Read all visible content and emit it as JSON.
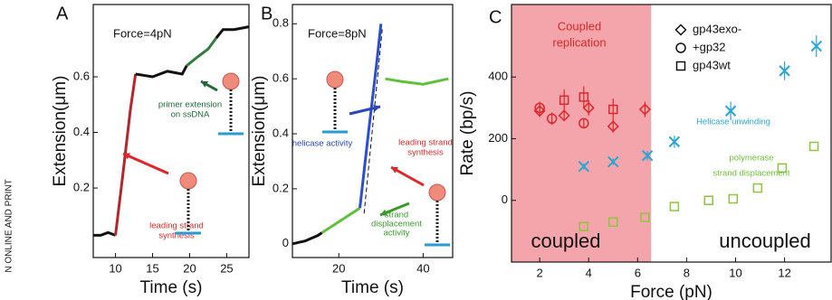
{
  "side_text": "N ONLINE AND PRINT",
  "chart_data": [
    {
      "type": "line",
      "label": "A",
      "xlabel": "Time (s)",
      "ylabel": "Extension(μm)",
      "xlim": [
        7,
        28
      ],
      "ylim": [
        -0.05,
        0.86
      ],
      "xticks": [
        10,
        15,
        20,
        25
      ],
      "yticks": [
        0.2,
        0.4,
        0.6
      ],
      "annotations": [
        {
          "text": "Force=4pN",
          "color": "#111"
        },
        {
          "text": "primer extension",
          "color": "#1e6b34"
        },
        {
          "text": "on ssDNA",
          "color": "#1e6b34"
        },
        {
          "text": "leading strand",
          "color": "#d42a2a"
        },
        {
          "text": "synthesis",
          "color": "#d42a2a"
        }
      ],
      "series": [
        {
          "color": "#111",
          "x": [
            7,
            8,
            9,
            10
          ],
          "values": [
            0.03,
            0.03,
            0.04,
            0.03
          ]
        },
        {
          "color": "#b3262a",
          "x": [
            10,
            11,
            12,
            12.7
          ],
          "values": [
            0.03,
            0.25,
            0.48,
            0.61
          ]
        },
        {
          "color": "#111",
          "x": [
            12.7,
            15,
            17,
            19,
            19.6
          ],
          "values": [
            0.61,
            0.6,
            0.62,
            0.61,
            0.64
          ]
        },
        {
          "color": "#2f7d3c",
          "x": [
            19.6,
            21,
            22.5,
            23.6
          ],
          "values": [
            0.64,
            0.67,
            0.7,
            0.74
          ]
        },
        {
          "color": "#111",
          "x": [
            23.6,
            24.5,
            26,
            28
          ],
          "values": [
            0.74,
            0.77,
            0.77,
            0.78
          ]
        }
      ]
    },
    {
      "type": "line",
      "label": "B",
      "xlabel": "Time (s)",
      "ylabel": "Extension(μm)",
      "xlim": [
        9,
        47
      ],
      "ylim": [
        -0.05,
        0.87
      ],
      "xticks": [
        20,
        40
      ],
      "yticks": [
        0,
        0.2,
        0.4,
        0.6,
        0.8
      ],
      "annotations": [
        {
          "text": "Force=8pN",
          "color": "#111"
        },
        {
          "text": "helicase activity",
          "color": "#2a48b8"
        },
        {
          "text": "leading strand",
          "color": "#d42a2a"
        },
        {
          "text": "synthesis",
          "color": "#d42a2a"
        },
        {
          "text": "strand",
          "color": "#3a9a2c"
        },
        {
          "text": "displacement",
          "color": "#3a9a2c"
        },
        {
          "text": "activity",
          "color": "#3a9a2c"
        }
      ],
      "series": [
        {
          "color": "#111",
          "x": [
            9,
            12,
            15,
            16
          ],
          "values": [
            0,
            0.01,
            0.03,
            0.04
          ]
        },
        {
          "color": "#5fc13c",
          "x": [
            16,
            19,
            22,
            25
          ],
          "values": [
            0.04,
            0.07,
            0.1,
            0.13
          ]
        },
        {
          "color": "#2c4ed0",
          "x": [
            25,
            27,
            29,
            30
          ],
          "values": [
            0.13,
            0.4,
            0.66,
            0.8
          ]
        },
        {
          "color": "#5fc13c",
          "x": [
            31,
            35,
            40,
            46
          ],
          "values": [
            0.6,
            0.59,
            0.58,
            0.6
          ]
        }
      ]
    },
    {
      "type": "scatter",
      "label": "C",
      "xlabel": "Force (pN)",
      "ylabel": "Rate (bp/s)",
      "xlim": [
        0.85,
        13.9
      ],
      "ylim": [
        -200,
        635
      ],
      "xticks": [
        2,
        4,
        6,
        8,
        10,
        12
      ],
      "yticks": [
        0,
        200,
        400
      ],
      "shaded_region": {
        "x": [
          0.85,
          6.55
        ],
        "color": "#f4a5ab"
      },
      "annotations": [
        {
          "text": "Coupled",
          "color": "#d42a2a"
        },
        {
          "text": "replication",
          "color": "#d42a2a"
        },
        {
          "text": "Helicase unwinding",
          "color": "#29a6d6"
        },
        {
          "text": "polymerase",
          "color": "#6cbf3a"
        },
        {
          "text": "strand displacement",
          "color": "#6cbf3a"
        },
        {
          "text": "coupled",
          "color": "#111"
        },
        {
          "text": "uncoupled",
          "color": "#111"
        }
      ],
      "series": [
        {
          "name": "gp43exo-",
          "marker": "diamond",
          "color": "#e0262b",
          "x": [
            2,
            3,
            4,
            5,
            6.3
          ],
          "values": [
            290,
            275,
            300,
            240,
            295
          ],
          "errors": [
            20,
            15,
            25,
            20,
            25
          ]
        },
        {
          "name": "+gp32",
          "marker": "circle",
          "color": "#e0262b",
          "x": [
            2,
            2.5,
            3.8
          ],
          "values": [
            300,
            265,
            250
          ],
          "errors": [
            20,
            20,
            15
          ]
        },
        {
          "name": "gp43wt",
          "marker": "square",
          "color": "#e0262b",
          "x": [
            3,
            3.8,
            5
          ],
          "values": [
            325,
            335,
            295
          ],
          "errors": [
            35,
            35,
            35
          ]
        },
        {
          "marker": "x",
          "color": "#29a6d6",
          "x": [
            3.8,
            5,
            6.4,
            7.5,
            9.8,
            12,
            13.3
          ],
          "values": [
            110,
            125,
            145,
            190,
            290,
            420,
            500
          ],
          "errors": [
            10,
            10,
            15,
            20,
            30,
            30,
            35
          ]
        },
        {
          "marker": "square",
          "color": "#8fc43e",
          "x": [
            3.8,
            5,
            6.3,
            7.5,
            8.9,
            9.9,
            10.9,
            11.9,
            13.2
          ],
          "values": [
            -85,
            -70,
            -55,
            -20,
            0,
            5,
            40,
            105,
            175
          ]
        }
      ]
    }
  ]
}
